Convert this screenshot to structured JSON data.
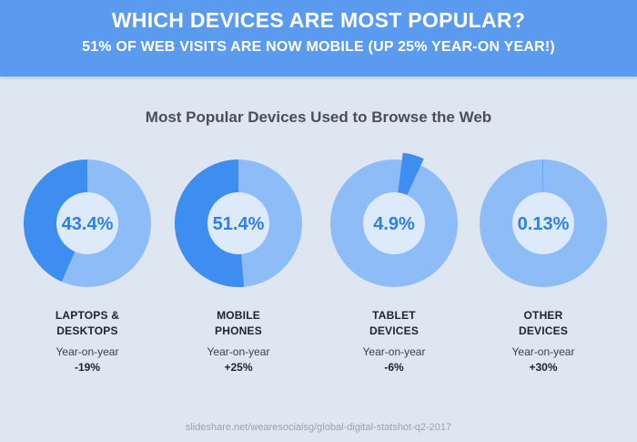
{
  "header": {
    "title": "WHICH DEVICES ARE MOST POPULAR?",
    "subtitle": "51% OF WEB VISITS ARE NOW MOBILE (UP 25% YEAR-ON YEAR!)"
  },
  "colors": {
    "banner": "#5b9bef",
    "ring_share": "#3d8ef0",
    "ring_rest": "#8ebcf6",
    "ring_fill": "#ddeaf9",
    "background": "#dde6f1"
  },
  "chart_data": {
    "type": "donut",
    "title": "Most Popular Devices Used to Browse the Web",
    "categories": [
      "LAPTOPS & DESKTOPS",
      "MOBILE PHONES",
      "TABLET DEVICES",
      "OTHER DEVICES"
    ],
    "values": [
      43.4,
      51.4,
      4.9,
      0.13
    ],
    "value_labels": [
      "43.4%",
      "51.4%",
      "4.9%",
      "0.13%"
    ],
    "yoy_label": "Year-on-year",
    "yoy_change": [
      "-19%",
      "+25%",
      "-6%",
      "+30%"
    ]
  },
  "items": [
    {
      "name_line1": "LAPTOPS &",
      "name_line2": "DESKTOPS",
      "yoy": "-19%"
    },
    {
      "name_line1": "MOBILE",
      "name_line2": "PHONES",
      "yoy": "+25%"
    },
    {
      "name_line1": "TABLET",
      "name_line2": "DEVICES",
      "yoy": "-6%"
    },
    {
      "name_line1": "OTHER",
      "name_line2": "DEVICES",
      "yoy": "+30%"
    }
  ],
  "source": "slideshare.net/wearesocialsg/global-digital-statshot-q2-2017"
}
